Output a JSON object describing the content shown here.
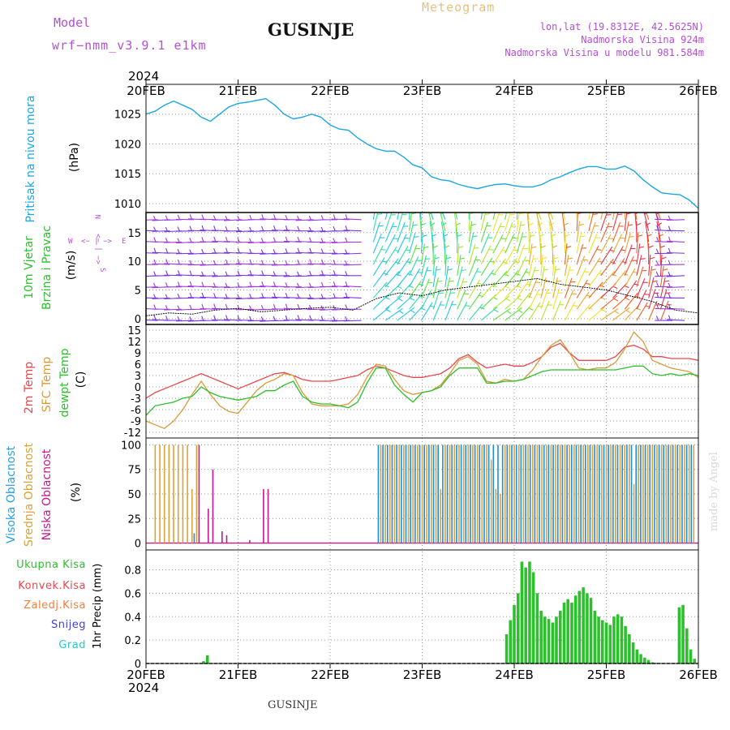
{
  "header": {
    "model_label": "Model",
    "model_name": "wrf−nmm_v3.9.1  e1km",
    "title": "GUSINJE",
    "meteogram": "Meteogram",
    "lonlat": "lon,lat (19.8312E, 42.5625N)",
    "altitude": "Nadmorska Visina 924m",
    "model_altitude": "Nadmorska Visina u modelu 981.584m",
    "footer_title": "GUSINJE",
    "credit": "made by Angel",
    "top_year": "2024",
    "bottom_year": "2024"
  },
  "colors": {
    "pressure": "#1aa7e6",
    "temp2m": "#e8474b",
    "sfc": "#d99a3a",
    "dewpt": "#2cc12c",
    "high_cloud": "#1a8fe0",
    "mid_cloud": "#d9a23a",
    "low_cloud": "#c21a8c",
    "precip": "#2cc12c",
    "purple_text": "#b44fd6",
    "wind_purple": "#8a2be2"
  },
  "time_axis": {
    "ticks": [
      "20FEB",
      "21FEB",
      "22FEB",
      "23FEB",
      "24FEB",
      "25FEB",
      "26FEB"
    ]
  },
  "chart_data": [
    {
      "type": "line",
      "panel": "pressure",
      "ylabel_1": "Pritisak na nivou mora",
      "ylabel_2": "(hPa)",
      "yticks": [
        1010,
        1015,
        1020,
        1025
      ],
      "ylim": [
        1008.5,
        1030
      ],
      "x": [
        0,
        0.1,
        0.2,
        0.3,
        0.4,
        0.5,
        0.6,
        0.7,
        0.8,
        0.9,
        1.0,
        1.1,
        1.2,
        1.3,
        1.4,
        1.5,
        1.6,
        1.7,
        1.8,
        1.9,
        2.0,
        2.1,
        2.2,
        2.3,
        2.4,
        2.5,
        2.6,
        2.7,
        2.8,
        2.9,
        3.0,
        3.1,
        3.2,
        3.3,
        3.4,
        3.5,
        3.6,
        3.7,
        3.8,
        3.9,
        4.0,
        4.1,
        4.2,
        4.3,
        4.4,
        4.5,
        4.6,
        4.7,
        4.8,
        4.9,
        5.0,
        5.1,
        5.2,
        5.3,
        5.4,
        5.5,
        5.6,
        5.7,
        5.8,
        5.9,
        6.0
      ],
      "series": [
        {
          "values": [
            1025,
            1025.5,
            1026.5,
            1027.2,
            1026.5,
            1025.8,
            1024.5,
            1023.8,
            1025,
            1026.2,
            1026.8,
            1027,
            1027.3,
            1027.6,
            1026.5,
            1025,
            1024.2,
            1024.5,
            1025,
            1024.5,
            1023.2,
            1022.5,
            1022.3,
            1021,
            1020,
            1019.2,
            1018.8,
            1018.8,
            1017.8,
            1016.5,
            1016,
            1014.5,
            1014,
            1013.8,
            1013.2,
            1012.8,
            1012.5,
            1012.9,
            1013.2,
            1013.3,
            1013,
            1012.8,
            1012.8,
            1013.2,
            1014,
            1014.5,
            1015.2,
            1015.8,
            1016.2,
            1016.2,
            1015.8,
            1015.8,
            1016.3,
            1015.5,
            1014,
            1012.8,
            1011.8,
            1011.6,
            1011.5,
            1010.6,
            1009.2
          ]
        }
      ]
    },
    {
      "type": "barb",
      "panel": "wind",
      "ylabel_1": "10m Vjetar",
      "ylabel_2": "Brzina i Pravac",
      "ylabel_3": "(m/s)",
      "compass": {
        "w": "W",
        "e": "E",
        "n": "N",
        "s": "S",
        "arrow_h": "<− | −>",
        "arrow_v": "<− | −>"
      },
      "yticks": [
        0,
        5,
        10,
        15
      ],
      "ylim": [
        -1,
        18.5
      ],
      "x": [
        0,
        0.25,
        0.5,
        0.75,
        1.0,
        1.25,
        1.5,
        1.75,
        2.0,
        2.25,
        2.5,
        2.75,
        3.0,
        3.25,
        3.5,
        3.75,
        4.0,
        4.25,
        4.5,
        4.75,
        5.0,
        5.25,
        5.5,
        5.75,
        6.0
      ],
      "series": [
        {
          "name": "speed",
          "values": [
            0.5,
            1,
            0.8,
            1.5,
            1.8,
            1.2,
            1.5,
            1.8,
            2,
            1.5,
            3.5,
            4.5,
            4,
            5,
            5.5,
            6,
            6.5,
            7,
            6,
            5.5,
            5,
            4,
            3,
            1.5,
            1
          ]
        }
      ]
    },
    {
      "type": "line",
      "panel": "temperature",
      "ylabel_1": "2m Temp",
      "ylabel_2": "SFC Temp",
      "ylabel_3": "dewpt Temp",
      "ylabel_4": "(C)",
      "yticks": [
        -12,
        -9,
        -6,
        -3,
        0,
        3,
        6,
        9,
        12,
        15
      ],
      "ylim": [
        -13.5,
        16.5
      ],
      "x": [
        0,
        0.1,
        0.2,
        0.3,
        0.4,
        0.5,
        0.6,
        0.7,
        0.8,
        0.9,
        1.0,
        1.1,
        1.2,
        1.3,
        1.4,
        1.5,
        1.6,
        1.7,
        1.8,
        1.9,
        2.0,
        2.1,
        2.2,
        2.3,
        2.4,
        2.5,
        2.6,
        2.7,
        2.8,
        2.9,
        3.0,
        3.1,
        3.2,
        3.3,
        3.4,
        3.5,
        3.6,
        3.7,
        3.8,
        3.9,
        4.0,
        4.1,
        4.2,
        4.3,
        4.4,
        4.5,
        4.6,
        4.7,
        4.8,
        4.9,
        5.0,
        5.1,
        5.2,
        5.3,
        5.4,
        5.5,
        5.6,
        5.7,
        5.8,
        5.9,
        6.0
      ],
      "series": [
        {
          "name": "2m Temp",
          "values": [
            -3,
            -1.5,
            -0.5,
            0.5,
            1.5,
            2.5,
            3.5,
            2.5,
            1.5,
            0.5,
            -0.5,
            0.5,
            1.5,
            2.5,
            3.5,
            3.8,
            3,
            2,
            1.5,
            1.5,
            1.5,
            2,
            2.5,
            3,
            4.5,
            5.5,
            5,
            4,
            3,
            2.5,
            2.5,
            3,
            3.5,
            5,
            7.5,
            8.5,
            6.5,
            5,
            5.5,
            6,
            5.5,
            5.5,
            6.5,
            8,
            10.5,
            11.5,
            9,
            7,
            7,
            7,
            7,
            8,
            10.5,
            11,
            10,
            8,
            8,
            7.5,
            7.5,
            7.5,
            7
          ]
        },
        {
          "name": "SFC Temp",
          "values": [
            -9,
            -10,
            -11,
            -9,
            -6,
            -2,
            1.5,
            -2,
            -5,
            -6.5,
            -7,
            -4,
            -1,
            1,
            2,
            3.5,
            3,
            -1.5,
            -4.5,
            -5,
            -5,
            -5,
            -4.5,
            -2,
            2.5,
            6,
            5.5,
            2,
            -1,
            -2,
            -1.5,
            -1,
            0.5,
            3.5,
            7,
            8,
            6,
            1.5,
            1,
            2,
            1.5,
            2,
            4.5,
            8,
            11,
            12.5,
            9,
            5,
            4.5,
            5,
            5,
            6.5,
            10,
            14.5,
            12,
            7,
            6,
            5,
            4.5,
            4,
            2.5
          ]
        },
        {
          "name": "dewpt Temp",
          "values": [
            -7.5,
            -5,
            -4.5,
            -4,
            -3,
            -2.5,
            0,
            -1.5,
            -2.5,
            -3,
            -3.5,
            -3,
            -2.5,
            -1,
            -1,
            0.5,
            1.5,
            -2.5,
            -4,
            -4.5,
            -4.5,
            -5,
            -5.5,
            -4,
            1,
            5,
            5,
            0.5,
            -2,
            -4,
            -1.5,
            -1,
            0,
            3,
            5,
            5,
            5,
            1,
            1,
            1.5,
            1.5,
            2,
            3,
            4,
            4.5,
            4.5,
            4.5,
            4.5,
            4.5,
            4.5,
            4.5,
            4.5,
            5,
            5.5,
            5.5,
            3.5,
            3,
            3.5,
            3,
            3.5,
            3
          ]
        }
      ]
    },
    {
      "type": "bar",
      "panel": "clouds",
      "ylabel_1": "Visoka Oblacnost",
      "ylabel_2": "Srednja Oblacnost",
      "ylabel_3": "Niska Oblacnost",
      "ylabel_4": "(%)",
      "yticks": [
        0,
        25,
        50,
        75,
        100
      ],
      "ylim": [
        -7,
        107
      ],
      "x": [
        0.1,
        0.15,
        0.2,
        0.25,
        0.3,
        0.35,
        0.4,
        0.45,
        0.5,
        0.55,
        0.6,
        0.65,
        0.7,
        0.75,
        0.8,
        0.85,
        0.9,
        0.95,
        1.05,
        1.1,
        1.2,
        1.25,
        1.3,
        1.5,
        1.7,
        1.9,
        2.1,
        2.3,
        2.55,
        2.6,
        2.65,
        2.7,
        2.75,
        2.8,
        2.85,
        2.9,
        2.95,
        3.0,
        3.05,
        3.1,
        3.15,
        3.2,
        3.25,
        3.3,
        3.35,
        3.4,
        3.45,
        3.5,
        3.55,
        3.6,
        3.65,
        3.7,
        3.75,
        3.8,
        3.85,
        3.9,
        3.95,
        4.0,
        4.05,
        4.1,
        4.15,
        4.2,
        4.25,
        4.3,
        4.35,
        4.4,
        4.45,
        4.5,
        4.55,
        4.6,
        4.65,
        4.7,
        4.75,
        4.8,
        4.85,
        4.9,
        4.95,
        5.0,
        5.05,
        5.1,
        5.15,
        5.2,
        5.25,
        5.3,
        5.35,
        5.4,
        5.45,
        5.5,
        5.55,
        5.6,
        5.65,
        5.7,
        5.75,
        5.8,
        5.85,
        5.9,
        5.95
      ],
      "series": [
        {
          "name": "Visoka Oblacnost",
          "values": [
            0,
            0,
            0,
            0,
            0,
            0,
            0,
            0,
            0,
            10,
            0,
            0,
            0,
            0,
            0,
            0,
            0,
            0,
            0,
            0,
            0,
            0,
            0,
            0,
            0,
            0,
            0,
            0,
            100,
            100,
            100,
            100,
            100,
            100,
            100,
            100,
            100,
            100,
            100,
            100,
            100,
            100,
            100,
            100,
            100,
            100,
            100,
            100,
            100,
            100,
            100,
            100,
            100,
            100,
            100,
            100,
            100,
            100,
            100,
            100,
            100,
            100,
            100,
            100,
            100,
            100,
            100,
            100,
            100,
            100,
            100,
            100,
            100,
            100,
            100,
            100,
            100,
            100,
            100,
            100,
            100,
            100,
            100,
            100,
            100,
            100,
            100,
            100,
            100,
            100,
            100,
            100,
            100,
            100,
            100,
            100,
            100
          ]
        },
        {
          "name": "Srednja Oblacnost",
          "values": [
            100,
            100,
            100,
            100,
            100,
            100,
            100,
            100,
            55,
            100,
            0,
            0,
            0,
            0,
            0,
            0,
            0,
            0,
            0,
            0,
            0,
            0,
            0,
            0,
            0,
            0,
            0,
            0,
            100,
            100,
            100,
            100,
            100,
            100,
            100,
            100,
            100,
            100,
            100,
            100,
            100,
            55,
            100,
            100,
            100,
            100,
            100,
            100,
            100,
            100,
            100,
            100,
            85,
            55,
            50,
            100,
            100,
            100,
            100,
            100,
            100,
            100,
            100,
            100,
            100,
            100,
            100,
            100,
            100,
            100,
            100,
            100,
            100,
            100,
            100,
            100,
            100,
            100,
            100,
            100,
            100,
            100,
            100,
            60,
            100,
            100,
            100,
            100,
            100,
            100,
            100,
            100,
            100,
            100,
            100,
            100,
            100
          ]
        },
        {
          "name": "Niska Oblacnost",
          "values": [
            0,
            0,
            0,
            0,
            0,
            0,
            0,
            0,
            0,
            100,
            0,
            35,
            75,
            0,
            12,
            8,
            0,
            0,
            0,
            3,
            0,
            55,
            55,
            0,
            0,
            0,
            0,
            0,
            0,
            0,
            0,
            0,
            0,
            0,
            0,
            0,
            0,
            0,
            0,
            0,
            0,
            0,
            0,
            0,
            0,
            0,
            0,
            0,
            0,
            0,
            0,
            0,
            0,
            0,
            0,
            0,
            0,
            0,
            0,
            0,
            0,
            0,
            0,
            0,
            0,
            0,
            0,
            0,
            0,
            0,
            0,
            0,
            0,
            0,
            0,
            0,
            0,
            0,
            0,
            0,
            0,
            0,
            0,
            0,
            0,
            0,
            0,
            0,
            0,
            0,
            0,
            0,
            0,
            0,
            0,
            0,
            0
          ]
        }
      ]
    },
    {
      "type": "bar",
      "panel": "precip",
      "ylabel_1": "1hr Precip (mm)",
      "legend": [
        "Ukupna Kisa",
        "Konvek.Kisa",
        "Zaledj.Kisa",
        "Snijeg",
        "Grad"
      ],
      "legend_colors": [
        "#2cc12c",
        "#e8474b",
        "#f08040",
        "#4040e0",
        "#2ec4c4"
      ],
      "yticks": [
        0,
        0.2,
        0.4,
        0.6,
        0.8
      ],
      "ylim": [
        0,
        0.97
      ],
      "x": [
        0.625,
        0.667,
        3.917,
        3.958,
        4.0,
        4.042,
        4.083,
        4.125,
        4.167,
        4.208,
        4.25,
        4.292,
        4.333,
        4.375,
        4.417,
        4.458,
        4.5,
        4.542,
        4.583,
        4.625,
        4.667,
        4.708,
        4.75,
        4.792,
        4.833,
        4.875,
        4.917,
        4.958,
        5.0,
        5.042,
        5.083,
        5.125,
        5.167,
        5.208,
        5.25,
        5.292,
        5.333,
        5.375,
        5.417,
        5.458,
        5.5,
        5.542,
        5.583,
        5.625,
        5.667,
        5.708,
        5.75,
        5.792,
        5.833,
        5.875,
        5.917,
        5.958
      ],
      "series": [
        {
          "name": "Ukupna Kisa",
          "values": [
            0.02,
            0.07,
            0.25,
            0.37,
            0.5,
            0.6,
            0.87,
            0.82,
            0.87,
            0.78,
            0.6,
            0.45,
            0.4,
            0.38,
            0.35,
            0.4,
            0.45,
            0.52,
            0.55,
            0.52,
            0.58,
            0.62,
            0.65,
            0.6,
            0.56,
            0.45,
            0.4,
            0.37,
            0.35,
            0.33,
            0.4,
            0.42,
            0.4,
            0.32,
            0.25,
            0.18,
            0.12,
            0.08,
            0.05,
            0.03,
            0.01,
            0.005,
            0.003,
            0.002,
            0.002,
            0.002,
            0.002,
            0.48,
            0.5,
            0.3,
            0.12,
            0.04
          ]
        }
      ]
    }
  ]
}
